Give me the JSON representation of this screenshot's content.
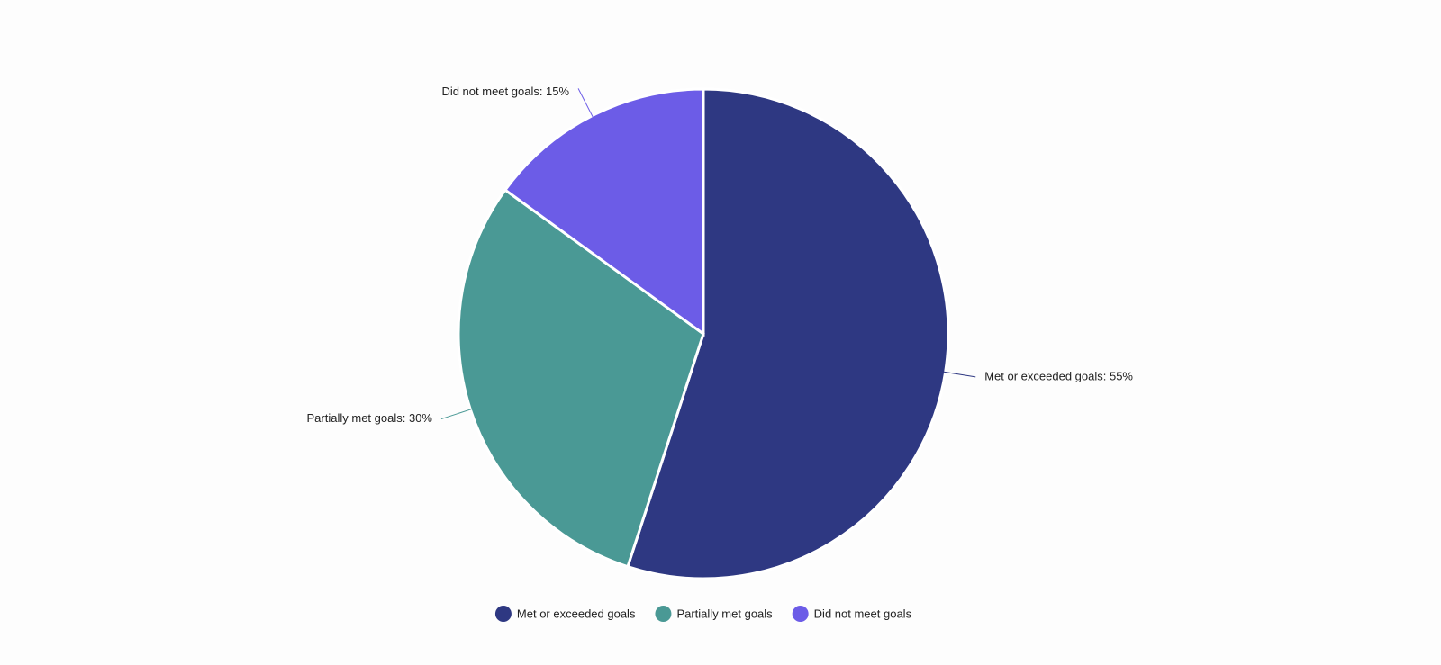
{
  "chart_data": {
    "type": "pie",
    "categories": [
      "Met or exceeded goals",
      "Partially met goals",
      "Did not meet goals"
    ],
    "values": [
      55,
      30,
      15
    ],
    "value_labels": [
      "Met or exceeded goals: 55%",
      "Partially met goals: 30%",
      "Did not meet goals: 15%"
    ],
    "colors": [
      "#2e3882",
      "#4a9995",
      "#6c5ce7"
    ],
    "legend": "bottom"
  }
}
